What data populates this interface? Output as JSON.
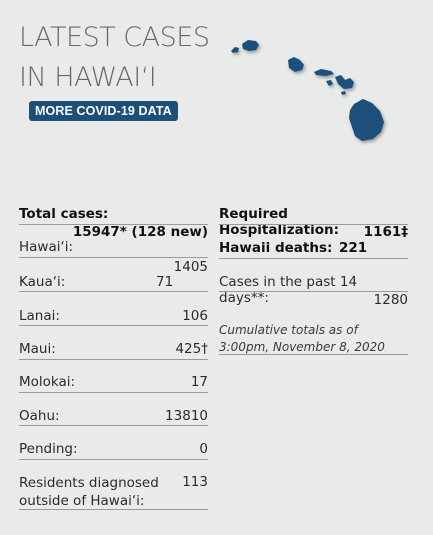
{
  "header": {
    "title_line1": "LATEST CASES",
    "title_line2": "IN HAWAI‘I",
    "more_button_label": "MORE COVID-19 DATA"
  },
  "map": {
    "icon": "hawaii-islands-map",
    "color": "#1d4f79"
  },
  "left": {
    "total_label": "Total cases:",
    "total_value": "15947* (128 new)",
    "rows": [
      {
        "label": "Hawai‘i:",
        "value": "1405"
      },
      {
        "label": "Kaua‘i:",
        "value": "71"
      },
      {
        "label": "Lanai:",
        "value": "106"
      },
      {
        "label": "Maui:",
        "value": "425†"
      },
      {
        "label": "Molokai:",
        "value": "17"
      },
      {
        "label": "Oahu:",
        "value": "13810"
      },
      {
        "label": "Pending:",
        "value": "0"
      },
      {
        "label": "Residents diagnosed outside of Hawai‘i:",
        "value": "113"
      }
    ]
  },
  "right": {
    "hosp_label": "Required Hospitalization:",
    "hosp_value": "1161‡",
    "deaths_label": "Hawaii deaths:",
    "deaths_value": "221",
    "past14_label": "Cases in the past 14 days**:",
    "past14_value": "1280",
    "note": "Cumulative totals as of 3:00pm, November 8, 2020"
  },
  "colors": {
    "background": "#e9eaea",
    "accent": "#1d4f79"
  }
}
